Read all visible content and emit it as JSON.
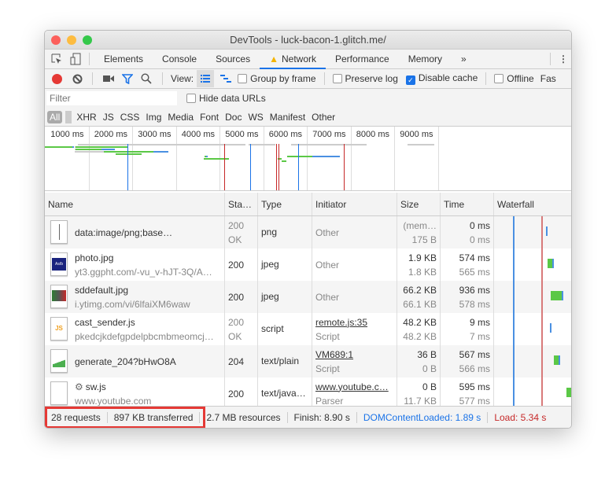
{
  "window": {
    "title": "DevTools - luck-bacon-1.glitch.me/"
  },
  "tabs": [
    {
      "label": "Elements"
    },
    {
      "label": "Console"
    },
    {
      "label": "Sources"
    },
    {
      "label": "Network",
      "active": true,
      "warning": true
    },
    {
      "label": "Performance"
    },
    {
      "label": "Memory"
    }
  ],
  "tabs_more": "»",
  "toolbar": {
    "view_label": "View:",
    "group_by_frame": "Group by frame",
    "preserve_log": "Preserve log",
    "disable_cache": "Disable cache",
    "disable_cache_checked": true,
    "offline": "Offline",
    "throttle": "Fas"
  },
  "filter": {
    "placeholder": "Filter",
    "hide_data_urls": "Hide data URLs"
  },
  "types": [
    "All",
    "XHR",
    "JS",
    "CSS",
    "Img",
    "Media",
    "Font",
    "Doc",
    "WS",
    "Manifest",
    "Other"
  ],
  "overview": {
    "ticks": [
      "1000 ms",
      "2000 ms",
      "3000 ms",
      "4000 ms",
      "5000 ms",
      "6000 ms",
      "7000 ms",
      "8000 ms",
      "9000 ms"
    ],
    "markers": [
      {
        "ms": 1890,
        "color": "#1a73e8"
      },
      {
        "ms": 4100,
        "color": "#c62828"
      },
      {
        "ms": 4700,
        "color": "#1a73e8"
      },
      {
        "ms": 5300,
        "color": "#c62828"
      },
      {
        "ms": 5360,
        "color": "#c62828"
      },
      {
        "ms": 5800,
        "color": "#1a73e8"
      },
      {
        "ms": 6850,
        "color": "#c62828"
      }
    ],
    "bars": [
      {
        "lane": 0,
        "start": 750,
        "end": 4590,
        "color": "#ccc"
      },
      {
        "lane": 0,
        "start": 4670,
        "end": 5280,
        "color": "#ccc"
      },
      {
        "lane": 0,
        "start": 5640,
        "end": 7370,
        "color": "#ccc"
      },
      {
        "lane": 0,
        "start": 8310,
        "end": 8910,
        "color": "#ccc"
      },
      {
        "lane": 1,
        "start": 0,
        "end": 630,
        "color": "#5bc846"
      },
      {
        "lane": 1,
        "start": 630,
        "end": 650,
        "color": "#4a90e2"
      },
      {
        "lane": 1,
        "start": 680,
        "end": 710,
        "color": "#ccc"
      },
      {
        "lane": 1,
        "start": 710,
        "end": 1900,
        "color": "#5bc846"
      },
      {
        "lane": 2,
        "start": 680,
        "end": 710,
        "color": "#ccc"
      },
      {
        "lane": 2,
        "start": 710,
        "end": 1290,
        "color": "#5bc846"
      },
      {
        "lane": 2,
        "start": 1290,
        "end": 1610,
        "color": "#4a90e2"
      },
      {
        "lane": 3,
        "start": 680,
        "end": 1350,
        "color": "#ccc"
      },
      {
        "lane": 3,
        "start": 1350,
        "end": 2490,
        "color": "#5bc846"
      },
      {
        "lane": 3,
        "start": 2490,
        "end": 2820,
        "color": "#4a90e2"
      },
      {
        "lane": 4,
        "start": 1630,
        "end": 2210,
        "color": "#5bc846"
      },
      {
        "lane": 5,
        "start": 3650,
        "end": 3700,
        "color": "#5bc846"
      },
      {
        "lane": 5,
        "start": 3700,
        "end": 3720,
        "color": "#4a90e2"
      },
      {
        "lane": 5,
        "start": 5550,
        "end": 6120,
        "color": "#5bc846"
      },
      {
        "lane": 5,
        "start": 6120,
        "end": 6750,
        "color": "#4a90e2"
      },
      {
        "lane": 6,
        "start": 3640,
        "end": 4210,
        "color": "#5bc846"
      },
      {
        "lane": 6,
        "start": 5340,
        "end": 5430,
        "color": "#5bc846"
      },
      {
        "lane": 7,
        "start": 5420,
        "end": 5530,
        "color": "#5bc846"
      }
    ]
  },
  "columns": [
    "Name",
    "Sta…",
    "Type",
    "Initiator",
    "Size",
    "Time",
    "Waterfall"
  ],
  "rows": [
    {
      "name": "data:image/png;base…",
      "sub": "",
      "status": "200",
      "status_text": "OK",
      "type": "png",
      "initiator": "Other",
      "initiator_sub": "",
      "initiator_link": false,
      "size": "(mem…",
      "size_sub": "175 B",
      "time": "0 ms",
      "time_sub": "0 ms",
      "thumb": "blank-image"
    },
    {
      "name": "photo.jpg",
      "sub": "yt3.ggpht.com/-vu_v-hJT-3Q/A…",
      "status": "200",
      "status_text": "",
      "type": "jpeg",
      "initiator": "Other",
      "initiator_sub": "",
      "initiator_link": false,
      "size": "1.9 KB",
      "size_sub": "1.8 KB",
      "time": "574 ms",
      "time_sub": "565 ms",
      "thumb": "photo-image"
    },
    {
      "name": "sddefault.jpg",
      "sub": "i.ytimg.com/vi/6lfaiXM6waw",
      "status": "200",
      "status_text": "",
      "type": "jpeg",
      "initiator": "Other",
      "initiator_sub": "",
      "initiator_link": false,
      "size": "66.2 KB",
      "size_sub": "66.1 KB",
      "time": "936 ms",
      "time_sub": "578 ms",
      "thumb": "video-thumbnail-image"
    },
    {
      "name": "cast_sender.js",
      "sub": "pkedcjkdefgpdelpbcmbmeomcj…",
      "status": "200",
      "status_text": "OK",
      "type": "script",
      "initiator": "remote.js:35",
      "initiator_sub": "Script",
      "initiator_link": true,
      "size": "48.2 KB",
      "size_sub": "48.2 KB",
      "time": "9 ms",
      "time_sub": "7 ms",
      "thumb": "js-file"
    },
    {
      "name": "generate_204?bHwO8A",
      "sub": "",
      "status": "204",
      "status_text": "",
      "type": "text/plain",
      "initiator": "VM689:1",
      "initiator_sub": "Script",
      "initiator_link": true,
      "size": "36 B",
      "size_sub": "0 B",
      "time": "567 ms",
      "time_sub": "566 ms",
      "thumb": "broken-image"
    },
    {
      "name": "sw.js",
      "sub": "www.youtube.com",
      "status": "200",
      "status_text": "",
      "type": "text/java…",
      "initiator": "www.youtube.c…",
      "initiator_sub": "Parser",
      "initiator_link": true,
      "size": "0 B",
      "size_sub": "11.7 KB",
      "time": "595 ms",
      "time_sub": "577 ms",
      "thumb": "blank-file",
      "gear": true
    }
  ],
  "status": {
    "requests": "28 requests",
    "transferred": "897 KB transferred",
    "resources": "2.7 MB resources",
    "finish": "Finish: 8.90 s",
    "dcl": "DOMContentLoaded: 1.89 s",
    "load": "Load: 5.34 s"
  },
  "colors": {
    "dcl": "#1a73e8",
    "load": "#c62828",
    "highlight": "#e53935",
    "waiting": "#5bc846",
    "download": "#4a90e2"
  }
}
